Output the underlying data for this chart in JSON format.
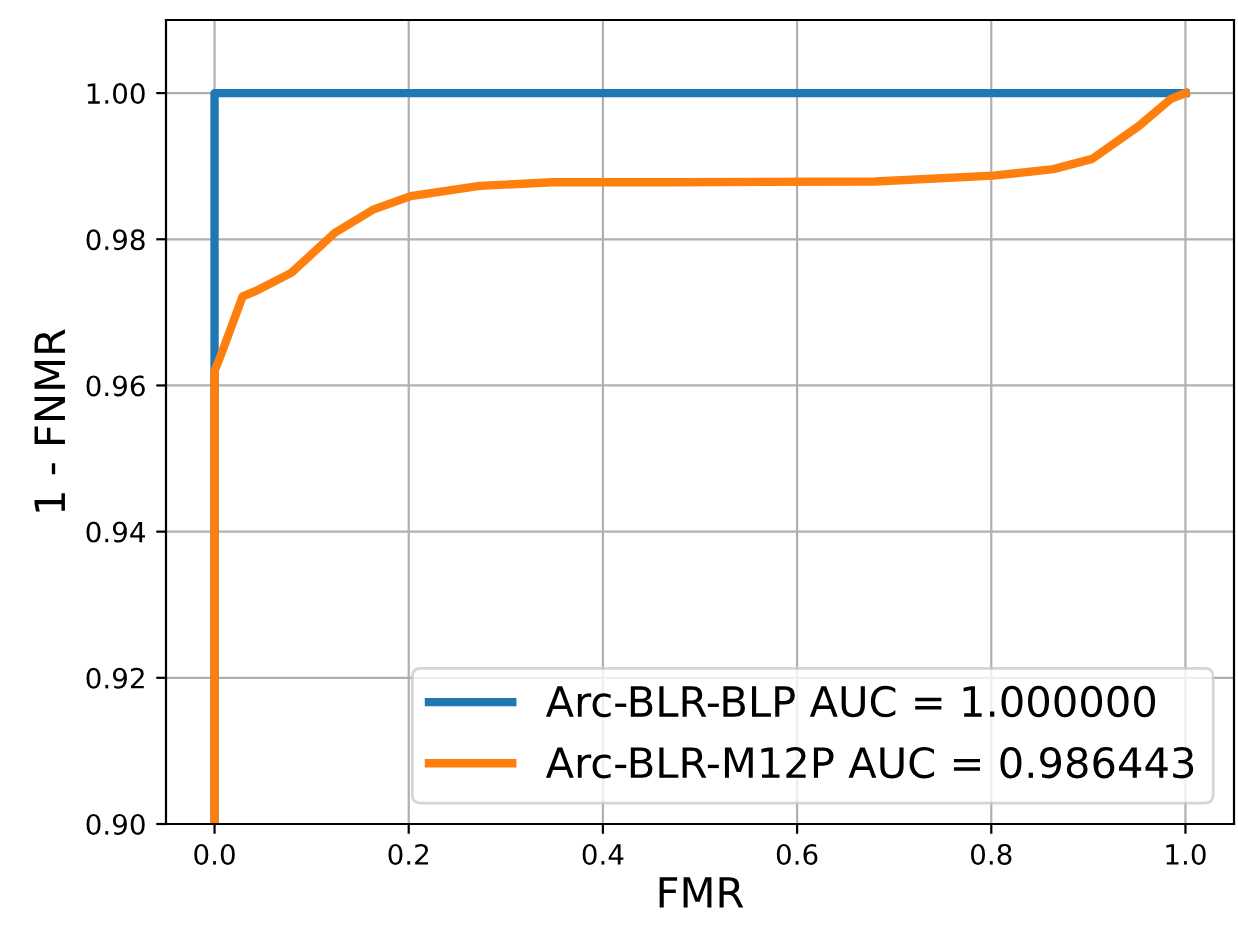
{
  "chart_data": {
    "type": "line",
    "xlabel": "FMR",
    "ylabel": "1 - FNMR",
    "xlim": [
      -0.05,
      1.05
    ],
    "ylim": [
      0.9,
      1.01
    ],
    "xticks": [
      {
        "value": 0.0,
        "label": "0.0"
      },
      {
        "value": 0.2,
        "label": "0.2"
      },
      {
        "value": 0.4,
        "label": "0.4"
      },
      {
        "value": 0.6,
        "label": "0.6"
      },
      {
        "value": 0.8,
        "label": "0.8"
      },
      {
        "value": 1.0,
        "label": "1.0"
      }
    ],
    "yticks": [
      {
        "value": 0.9,
        "label": "0.90"
      },
      {
        "value": 0.92,
        "label": "0.92"
      },
      {
        "value": 0.94,
        "label": "0.94"
      },
      {
        "value": 0.96,
        "label": "0.96"
      },
      {
        "value": 0.98,
        "label": "0.98"
      },
      {
        "value": 1.0,
        "label": "1.00"
      }
    ],
    "grid": true,
    "legend": "bottom right",
    "line_style": "solid",
    "marker": "none",
    "series": [
      {
        "name": "Arc-BLR-BLP AUC = 1.000000",
        "color": "#1f77b4",
        "x": [
          0,
          0,
          1
        ],
        "values": [
          0.9,
          1.0,
          1.0
        ]
      },
      {
        "name": "Arc-BLR-M12P AUC = 0.986443",
        "color": "#ff7f0e",
        "x": [
          0,
          0,
          0.005,
          0.029,
          0.042,
          0.079,
          0.124,
          0.164,
          0.202,
          0.273,
          0.348,
          0.477,
          0.68,
          0.802,
          0.864,
          0.904,
          0.952,
          0.985,
          1.0
        ],
        "values": [
          0.9,
          0.962,
          0.9636,
          0.9722,
          0.9729,
          0.9754,
          0.9809,
          0.9841,
          0.9859,
          0.9873,
          0.9878,
          0.9878,
          0.9879,
          0.9887,
          0.9896,
          0.991,
          0.9955,
          0.9992,
          1.0
        ]
      }
    ]
  }
}
